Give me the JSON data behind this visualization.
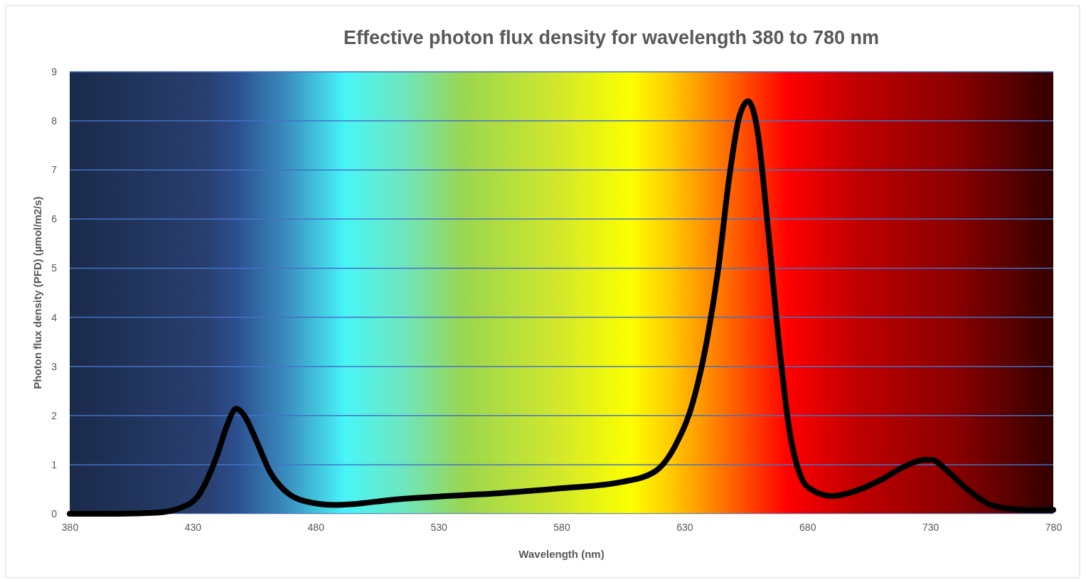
{
  "chart_data": {
    "type": "line",
    "title": "Effective photon flux density for wavelength 380 to 780 nm",
    "xlabel": "Wavelength (nm)",
    "ylabel": "Photon flux density (PFD) (µmol/m2/s)",
    "xlim": [
      380,
      780
    ],
    "xticks": [
      380,
      430,
      480,
      530,
      580,
      630,
      680,
      730,
      780
    ],
    "ylim": [
      0,
      9
    ],
    "yticks": [
      0,
      1,
      2,
      3,
      4,
      5,
      6,
      7,
      8,
      9
    ],
    "grid": "y",
    "marker": "none",
    "line_style": "solid",
    "series": [
      {
        "color": "#000000",
        "x": [
          380,
          400,
          415,
          425,
          432,
          440,
          444,
          447.7,
          451,
          455.8,
          461.6,
          467.3,
          476,
          487.6,
          496,
          510,
          530,
          555,
          580,
          604.7,
          617.7,
          626.4,
          633.6,
          639.4,
          643.8,
          648.1,
          652.4,
          655.9,
          659.7,
          664,
          668.4,
          672.7,
          677,
          681.4,
          690,
          698.7,
          710.3,
          719,
          727.7,
          730.6,
          736.3,
          745,
          753.7,
          762.4,
          770,
          780
        ],
        "values": [
          0,
          0,
          0.02,
          0.12,
          0.35,
          1.2,
          1.8,
          2.14,
          2.0,
          1.5,
          0.84,
          0.48,
          0.25,
          0.18,
          0.2,
          0.28,
          0.35,
          0.42,
          0.52,
          0.65,
          0.85,
          1.4,
          2.3,
          3.6,
          5.0,
          6.8,
          8.1,
          8.4,
          7.8,
          5.8,
          3.5,
          1.7,
          0.8,
          0.5,
          0.36,
          0.45,
          0.7,
          0.95,
          1.1,
          1.1,
          0.9,
          0.5,
          0.2,
          0.1,
          0.08,
          0.08
        ]
      }
    ]
  }
}
